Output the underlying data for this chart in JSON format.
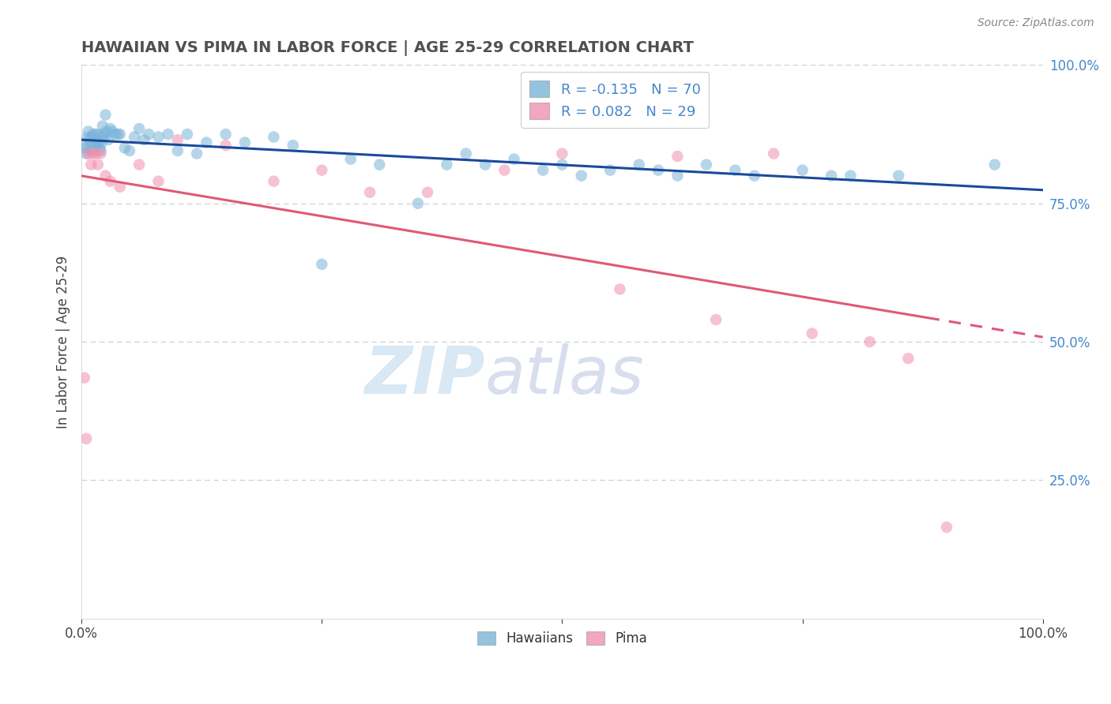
{
  "title": "HAWAIIAN VS PIMA IN LABOR FORCE | AGE 25-29 CORRELATION CHART",
  "source_text": "Source: ZipAtlas.com",
  "ylabel": "In Labor Force | Age 25-29",
  "xlim": [
    0.0,
    1.0
  ],
  "ylim": [
    0.0,
    1.0
  ],
  "legend_entries": [
    {
      "label": "R = -0.135   N = 70",
      "color": "#a8c8e8"
    },
    {
      "label": "R = 0.082   N = 29",
      "color": "#f4b0c8"
    }
  ],
  "legend_label_hawaiians": "Hawaiians",
  "legend_label_pima": "Pima",
  "blue_color": "#7ab4d8",
  "pink_color": "#f090b0",
  "blue_line_color": "#1a4a9a",
  "pink_line_color": "#e05878",
  "background_color": "#ffffff",
  "grid_color": "#cccccc",
  "title_color": "#505050",
  "right_tick_color": "#4488cc",
  "hawaiians_x": [
    0.003,
    0.004,
    0.005,
    0.006,
    0.007,
    0.008,
    0.009,
    0.01,
    0.011,
    0.012,
    0.013,
    0.014,
    0.015,
    0.016,
    0.016,
    0.017,
    0.018,
    0.019,
    0.02,
    0.021,
    0.022,
    0.023,
    0.024,
    0.025,
    0.026,
    0.028,
    0.03,
    0.032,
    0.035,
    0.038,
    0.04,
    0.045,
    0.05,
    0.055,
    0.06,
    0.065,
    0.07,
    0.08,
    0.09,
    0.1,
    0.11,
    0.12,
    0.13,
    0.15,
    0.17,
    0.2,
    0.22,
    0.25,
    0.28,
    0.31,
    0.35,
    0.38,
    0.4,
    0.42,
    0.45,
    0.48,
    0.5,
    0.52,
    0.55,
    0.58,
    0.6,
    0.62,
    0.65,
    0.68,
    0.7,
    0.75,
    0.78,
    0.8,
    0.85,
    0.95
  ],
  "hawaiians_y": [
    0.855,
    0.85,
    0.84,
    0.87,
    0.88,
    0.865,
    0.845,
    0.855,
    0.87,
    0.875,
    0.845,
    0.86,
    0.875,
    0.855,
    0.865,
    0.86,
    0.875,
    0.85,
    0.845,
    0.86,
    0.89,
    0.875,
    0.87,
    0.91,
    0.88,
    0.865,
    0.885,
    0.88,
    0.875,
    0.875,
    0.875,
    0.85,
    0.845,
    0.87,
    0.885,
    0.865,
    0.875,
    0.87,
    0.875,
    0.845,
    0.875,
    0.84,
    0.86,
    0.875,
    0.86,
    0.87,
    0.855,
    0.64,
    0.83,
    0.82,
    0.75,
    0.82,
    0.84,
    0.82,
    0.83,
    0.81,
    0.82,
    0.8,
    0.81,
    0.82,
    0.81,
    0.8,
    0.82,
    0.81,
    0.8,
    0.81,
    0.8,
    0.8,
    0.8,
    0.82
  ],
  "pima_x": [
    0.003,
    0.005,
    0.007,
    0.01,
    0.012,
    0.015,
    0.017,
    0.02,
    0.025,
    0.03,
    0.04,
    0.06,
    0.08,
    0.1,
    0.15,
    0.2,
    0.25,
    0.3,
    0.36,
    0.44,
    0.5,
    0.56,
    0.62,
    0.66,
    0.72,
    0.76,
    0.82,
    0.86,
    0.9
  ],
  "pima_y": [
    0.435,
    0.325,
    0.84,
    0.82,
    0.84,
    0.84,
    0.82,
    0.84,
    0.8,
    0.79,
    0.78,
    0.82,
    0.79,
    0.865,
    0.855,
    0.79,
    0.81,
    0.77,
    0.77,
    0.81,
    0.84,
    0.595,
    0.835,
    0.54,
    0.84,
    0.515,
    0.5,
    0.47,
    0.165
  ],
  "watermark_zip": "ZIP",
  "watermark_atlas": "atlas",
  "dot_size": 110,
  "dot_alpha": 0.55,
  "line_width": 2.2
}
